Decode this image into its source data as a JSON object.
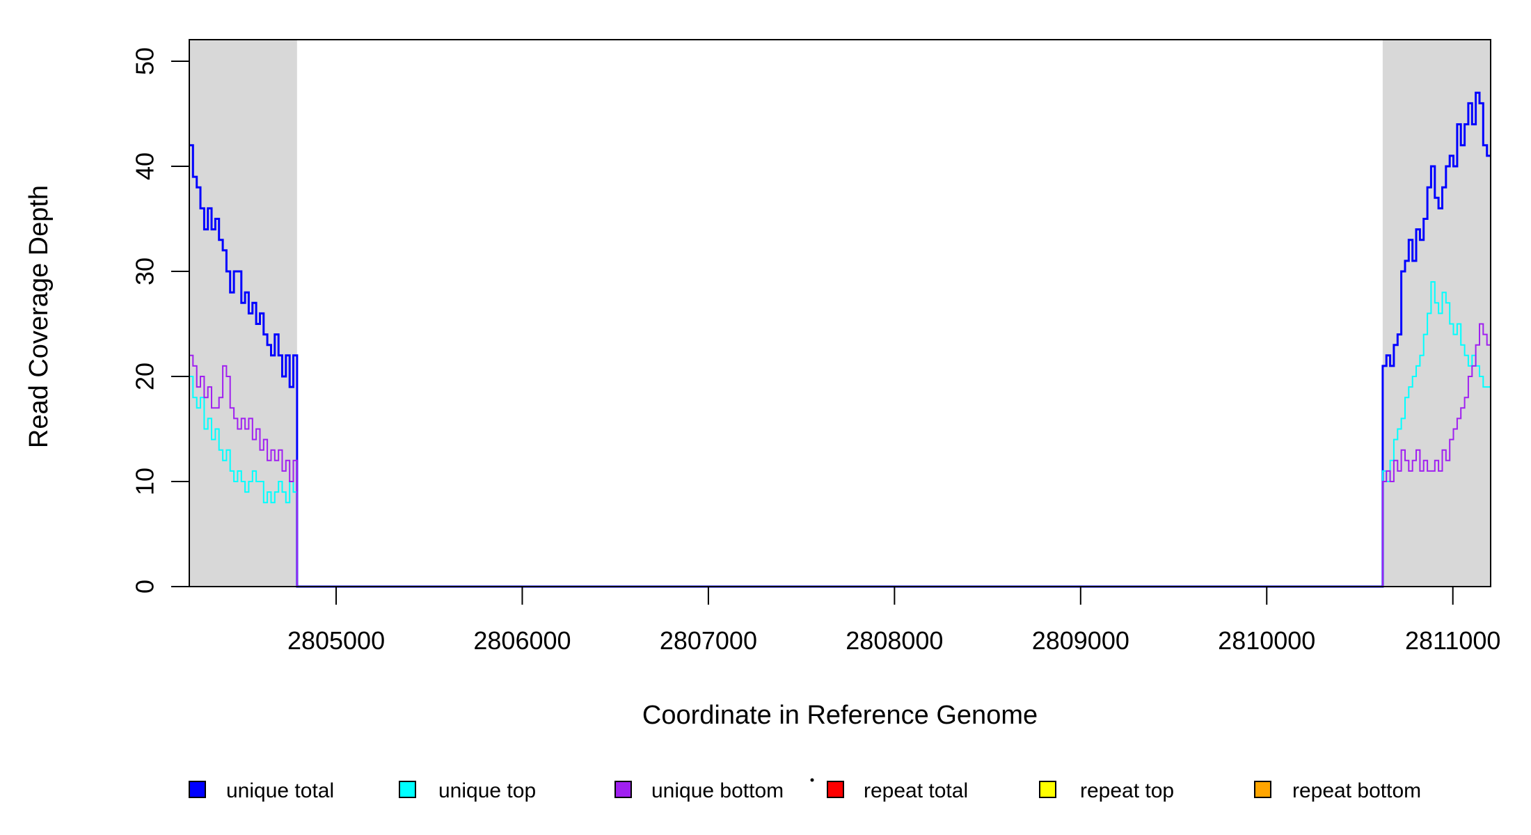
{
  "figure": {
    "title": "",
    "x_axis_label": "Coordinate in Reference Genome",
    "y_axis_label": "Read Coverage Depth"
  },
  "chart_data": {
    "type": "line",
    "subtype": "step-coverage-plot",
    "title": "",
    "xlabel": "Coordinate in Reference Genome",
    "ylabel": "Read Coverage Depth",
    "xlim": [
      2804211,
      2811203
    ],
    "ylim": [
      0,
      52.05
    ],
    "x_ticks": [
      2805000,
      2806000,
      2807000,
      2808000,
      2809000,
      2810000,
      2811000
    ],
    "y_ticks": [
      0,
      10,
      20,
      30,
      40,
      50
    ],
    "grid": false,
    "legend_position": "bottom",
    "shaded_regions": [
      {
        "name": "left-flank",
        "start": 2804211,
        "end": 2804790,
        "color": "#d8d8d8"
      },
      {
        "name": "right-flank",
        "start": 2810623,
        "end": 2811203,
        "color": "#d8d8d8"
      }
    ],
    "bin_span_bp": 20,
    "series": [
      {
        "name": "unique total",
        "color": "#0000ff",
        "line_width": 3,
        "zero_between_bands": true,
        "left_band_values": [
          42,
          39,
          38,
          36,
          34,
          36,
          34,
          35,
          33,
          32,
          30,
          28,
          30,
          30,
          27,
          28,
          26,
          27,
          25,
          26,
          24,
          23,
          22,
          24,
          22,
          20,
          22,
          19,
          22
        ],
        "right_band_values": [
          21,
          22,
          21,
          23,
          24,
          30,
          31,
          33,
          31,
          34,
          33,
          35,
          38,
          40,
          37,
          36,
          38,
          40,
          41,
          40,
          44,
          42,
          44,
          46,
          44,
          47,
          46,
          42,
          41
        ]
      },
      {
        "name": "unique top",
        "color": "#00ffff",
        "line_width": 2,
        "zero_between_bands": true,
        "left_band_values": [
          20,
          18,
          17,
          18,
          15,
          16,
          14,
          15,
          13,
          12,
          13,
          11,
          10,
          11,
          10,
          9,
          10,
          11,
          10,
          10,
          8,
          9,
          8,
          9,
          10,
          9,
          8,
          10,
          9
        ],
        "right_band_values": [
          11,
          10,
          12,
          14,
          15,
          16,
          18,
          19,
          20,
          21,
          22,
          24,
          26,
          29,
          27,
          26,
          28,
          27,
          25,
          24,
          25,
          23,
          22,
          21,
          22,
          21,
          20,
          19,
          19
        ]
      },
      {
        "name": "unique bottom",
        "color": "#a020f0",
        "line_width": 2,
        "zero_between_bands": true,
        "left_band_values": [
          22,
          21,
          19,
          20,
          18,
          19,
          17,
          17,
          18,
          21,
          20,
          17,
          16,
          15,
          16,
          15,
          16,
          14,
          15,
          13,
          14,
          12,
          13,
          12,
          13,
          11,
          12,
          10,
          12
        ],
        "right_band_values": [
          10,
          11,
          10,
          12,
          11,
          13,
          12,
          11,
          12,
          13,
          11,
          12,
          11,
          11,
          12,
          11,
          13,
          12,
          14,
          15,
          16,
          17,
          18,
          20,
          21,
          23,
          25,
          24,
          23
        ]
      },
      {
        "name": "repeat total",
        "color": "#ff0000",
        "line_width": 2,
        "constant_zero_in_bands": true
      },
      {
        "name": "repeat top",
        "color": "#ffff00",
        "line_width": 2,
        "constant_zero_in_bands": true
      },
      {
        "name": "repeat bottom",
        "color": "#ffa500",
        "line_width": 2,
        "constant_zero_in_bands": true
      }
    ],
    "legend_entries": [
      "unique total",
      "unique top",
      "unique bottom",
      "repeat total",
      "repeat top",
      "repeat bottom"
    ],
    "axis_color": "#000000",
    "background_color": "#ffffff",
    "stray_mark": {
      "present": true,
      "shape": "dot"
    }
  }
}
